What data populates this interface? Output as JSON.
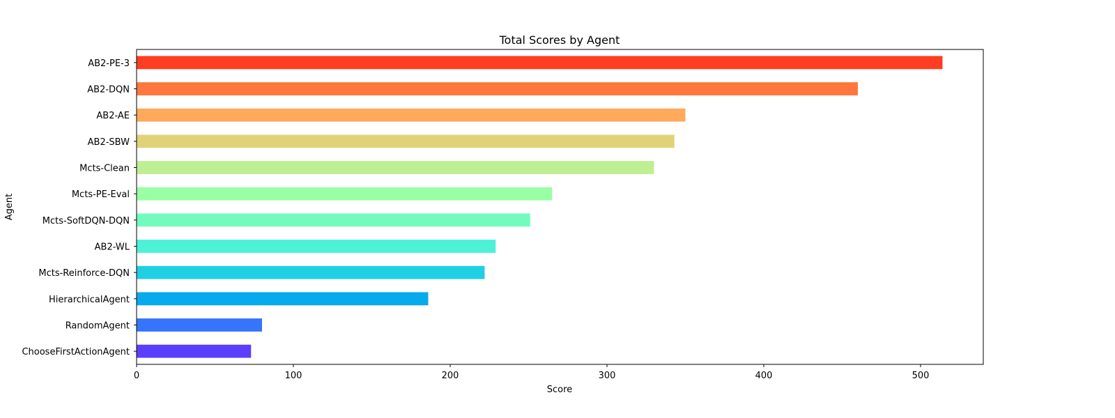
{
  "chart_data": {
    "type": "bar",
    "orientation": "horizontal",
    "title": "Total Scores by Agent",
    "xlabel": "Score",
    "ylabel": "Agent",
    "xlim": [
      0,
      540
    ],
    "xticks": [
      0,
      100,
      200,
      300,
      400,
      500
    ],
    "grid": false,
    "categories": [
      "AB2-PE-3",
      "AB2-DQN",
      "AB2-AE",
      "AB2-SBW",
      "Mcts-Clean",
      "Mcts-PE-Eval",
      "Mcts-SoftDQN-DQN",
      "AB2-WL",
      "Mcts-Reinforce-DQN",
      "HierarchicalAgent",
      "RandomAgent",
      "ChooseFirstActionAgent"
    ],
    "values": [
      514,
      460,
      350,
      343,
      330,
      265,
      251,
      229,
      222,
      186,
      80,
      73
    ],
    "colors": [
      "#ff3d21",
      "#ff773c",
      "#ffa95b",
      "#e0d377",
      "#beef92",
      "#99fea4",
      "#71fcbd",
      "#4cf1d6",
      "#20d0e2",
      "#08aaee",
      "#3574fb",
      "#5c3ffc"
    ]
  }
}
